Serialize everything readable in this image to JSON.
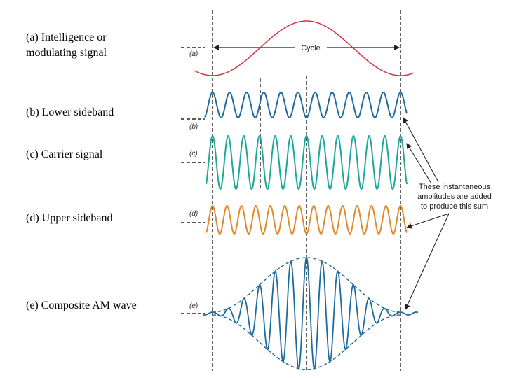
{
  "panels": [
    {
      "label_lines": [
        "(a) Intelligence or",
        "modulating signal"
      ],
      "tag": "(a)"
    },
    {
      "label_lines": [
        "(b) Lower sideband"
      ],
      "tag": "(b)"
    },
    {
      "label_lines": [
        "(c) Carrier signal"
      ],
      "tag": "(c)"
    },
    {
      "label_lines": [
        "(d) Upper sideband"
      ],
      "tag": "(d)"
    },
    {
      "label_lines": [
        "(e) Composite AM wave"
      ],
      "tag": "(e)"
    }
  ],
  "cycle_label": "Cycle",
  "annotation": [
    "These instantaneous",
    "amplitudes are added",
    "to produce this sum"
  ]
}
